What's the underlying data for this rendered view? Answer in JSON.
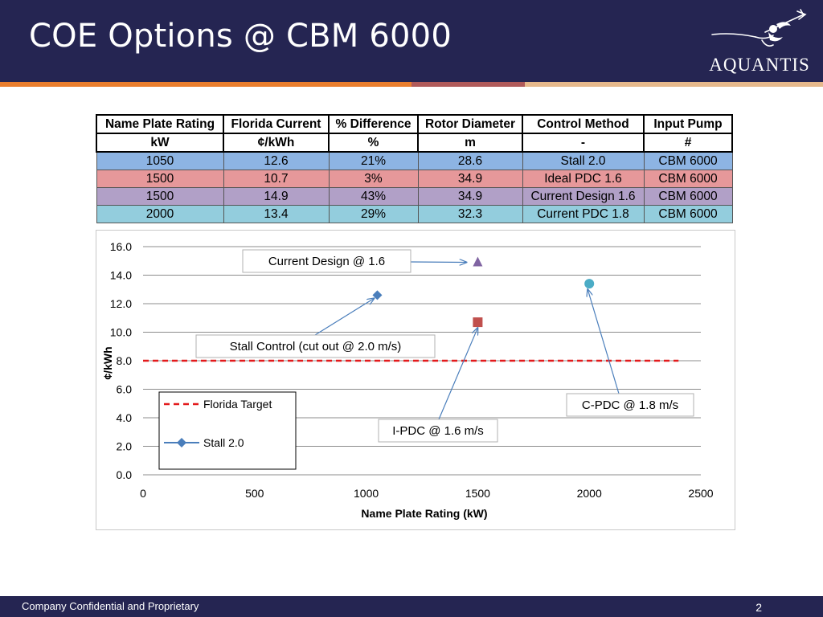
{
  "slide": {
    "title": "COE Options @ CBM 6000",
    "logo_text": "AQUANTIS",
    "footer": "Company Confidential and Proprietary",
    "page_number": "2",
    "colors": {
      "header": "#252552",
      "stripe": [
        "#ea7e2e",
        "#b05a5a",
        "#e6b98c",
        "#252552"
      ]
    }
  },
  "table": {
    "headers": [
      "Name Plate Rating",
      "Florida Current",
      "% Difference",
      "Rotor Diameter",
      "Control Method",
      "Input Pump"
    ],
    "units": [
      "kW",
      "¢/kWh",
      "%",
      "m",
      "-",
      "#"
    ],
    "rows": [
      {
        "color": "#8db4e3",
        "cells": [
          "1050",
          "12.6",
          "21%",
          "28.6",
          "Stall 2.0",
          "CBM 6000"
        ]
      },
      {
        "color": "#e6989a",
        "cells": [
          "1500",
          "10.7",
          "3%",
          "34.9",
          "Ideal PDC 1.6",
          "CBM 6000"
        ]
      },
      {
        "color": "#b1a0c7",
        "cells": [
          "1500",
          "14.9",
          "43%",
          "34.9",
          "Current Design 1.6",
          "CBM 6000"
        ]
      },
      {
        "color": "#93cddd",
        "cells": [
          "2000",
          "13.4",
          "29%",
          "32.3",
          "Current PDC 1.8",
          "CBM 6000"
        ]
      }
    ]
  },
  "chart_data": {
    "type": "scatter",
    "xlabel": "Name Plate Rating (kW)",
    "ylabel": "¢/kWh",
    "xlim": [
      0,
      2500
    ],
    "ylim": [
      0,
      16
    ],
    "x_ticks": [
      "0",
      "500",
      "1000",
      "1500",
      "2000",
      "2500"
    ],
    "y_ticks": [
      "0.0",
      "2.0",
      "4.0",
      "6.0",
      "8.0",
      "10.0",
      "12.0",
      "14.0",
      "16.0"
    ],
    "grid": "horizontal",
    "series": [
      {
        "name": "Florida Target",
        "kind": "dashed-line",
        "color": "#e31a1c",
        "x": [
          0,
          2400
        ],
        "y": [
          8.0,
          8.0
        ]
      },
      {
        "name": "Stall 2.0",
        "kind": "marker",
        "marker": "diamond",
        "color": "#4a7ebb",
        "x": [
          1050
        ],
        "y": [
          12.6
        ]
      },
      {
        "kind": "marker",
        "marker": "square",
        "color": "#c0504d",
        "x": [
          1500
        ],
        "y": [
          10.7
        ]
      },
      {
        "kind": "marker",
        "marker": "triangle",
        "color": "#8064a2",
        "x": [
          1500
        ],
        "y": [
          14.9
        ]
      },
      {
        "kind": "marker",
        "marker": "circle",
        "color": "#4bacc6",
        "x": [
          2000
        ],
        "y": [
          13.4
        ]
      }
    ],
    "legend": {
      "placement": "bottom-left",
      "entries": [
        "Florida Target",
        "Stall 2.0"
      ]
    },
    "annotations": [
      {
        "text": "Current  Design @ 1.6",
        "target_x": 1500,
        "target_y": 14.9
      },
      {
        "text": "Stall Control (cut out @ 2.0 m/s)",
        "target_x": 1050,
        "target_y": 12.6
      },
      {
        "text": "I-PDC @ 1.6 m/s",
        "target_x": 1500,
        "target_y": 10.7
      },
      {
        "text": "C-PDC @ 1.8 m/s",
        "target_x": 2000,
        "target_y": 13.4
      }
    ]
  }
}
